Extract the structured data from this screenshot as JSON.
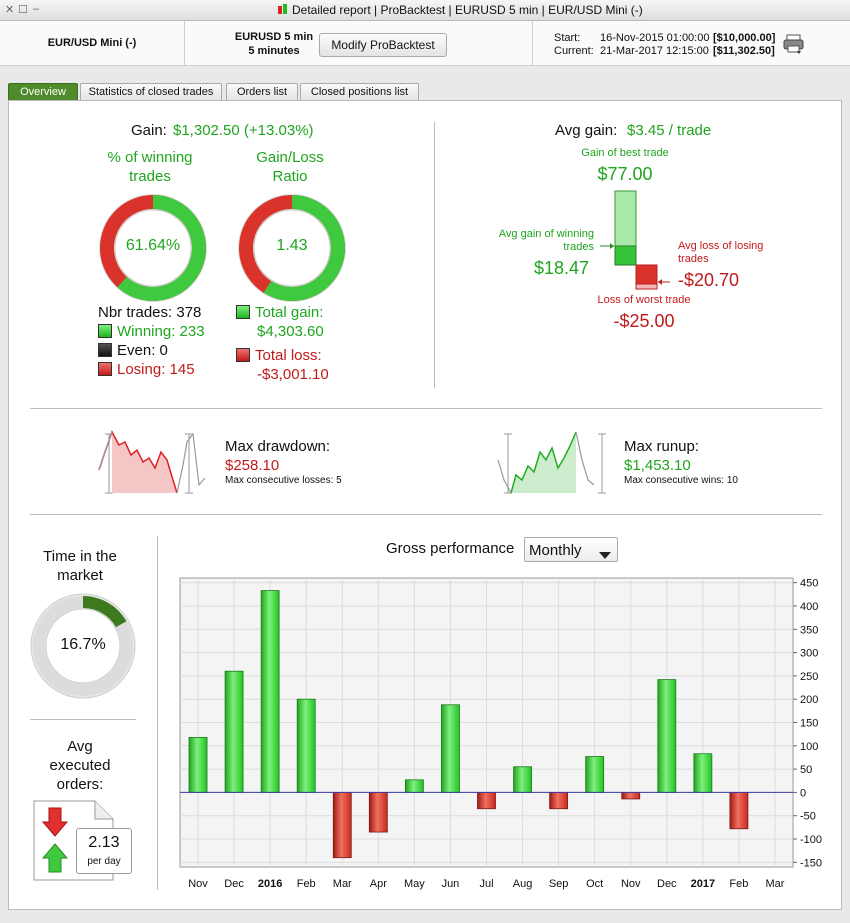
{
  "window": {
    "title": "Detailed report | ProBacktest | EURUSD 5 min | EUR/USD Mini (-)"
  },
  "header": {
    "instrument": "EUR/USD Mini (-)",
    "timeframe_line1": "EURUSD 5 min",
    "timeframe_line2": "5 minutes",
    "modify_button": "Modify ProBacktest",
    "start_label": "Start:",
    "start_date": "16-Nov-2015 01:00:00",
    "start_value": "[$10,000.00]",
    "current_label": "Current:",
    "current_date": "21-Mar-2017 12:15:00",
    "current_value": "[$11,302.50]"
  },
  "tabs": [
    "Overview",
    "Statistics of closed trades",
    "Orders list",
    "Closed positions list"
  ],
  "gain": {
    "label": "Gain:",
    "value": "$1,302.50 (+13.03%)"
  },
  "winning_pct": {
    "title_line1": "% of winning",
    "title_line2": "trades",
    "value": "61.64%",
    "fraction": 0.6164
  },
  "gl_ratio": {
    "title_line1": "Gain/Loss",
    "title_line2": "Ratio",
    "value": "1.43",
    "fraction": 0.589
  },
  "counts": {
    "nbr_trades": "Nbr trades: 378",
    "winning": "Winning: 233",
    "even": "Even: 0",
    "losing": "Losing: 145"
  },
  "totals": {
    "gain_label": "Total gain:",
    "gain_value": "$4,303.60",
    "loss_label": "Total loss:",
    "loss_value": "-$3,001.10"
  },
  "avg_gain": {
    "label": "Avg gain:",
    "value": "$3.45 / trade",
    "best_label": "Gain of best trade",
    "best_value": "$77.00",
    "avg_win_label": "Avg gain of winning trades",
    "avg_win_value": "$18.47",
    "avg_loss_label": "Avg loss of losing trades",
    "avg_loss_value": "-$20.70",
    "worst_label": "Loss of worst trade",
    "worst_value": "-$25.00"
  },
  "drawdown": {
    "label": "Max drawdown:",
    "value": "$258.10",
    "sub": "Max consecutive losses: 5"
  },
  "runup": {
    "label": "Max runup:",
    "value": "$1,453.10",
    "sub": "Max consecutive wins: 10"
  },
  "time_in_market": {
    "title_line1": "Time in the",
    "title_line2": "market",
    "value": "16.7%",
    "fraction": 0.167
  },
  "avg_orders": {
    "title_line1": "Avg",
    "title_line2": "executed",
    "title_line3": "orders:",
    "value": "2.13",
    "unit": "per day"
  },
  "performance": {
    "label": "Gross performance",
    "period": "Monthly"
  },
  "chart_data": {
    "type": "bar",
    "title": "Gross performance",
    "categories": [
      "Nov",
      "Dec",
      "2016",
      "Feb",
      "Mar",
      "Apr",
      "May",
      "Jun",
      "Jul",
      "Aug",
      "Sep",
      "Oct",
      "Nov",
      "Dec",
      "2017",
      "Feb",
      "Mar"
    ],
    "values": [
      118,
      260,
      433,
      200,
      -140,
      -85,
      27,
      188,
      -35,
      55,
      -35,
      77,
      -14,
      242,
      83,
      -78,
      0
    ],
    "ylim": [
      -160,
      460
    ],
    "yticks": [
      450,
      400,
      350,
      300,
      250,
      200,
      150,
      100,
      50,
      0,
      -50,
      -100,
      -150
    ],
    "bold_categories": [
      "2016",
      "2017"
    ],
    "colors": {
      "positive": "#22c322",
      "negative": "#c8291f",
      "zero_line": "#3a3aa8"
    }
  }
}
